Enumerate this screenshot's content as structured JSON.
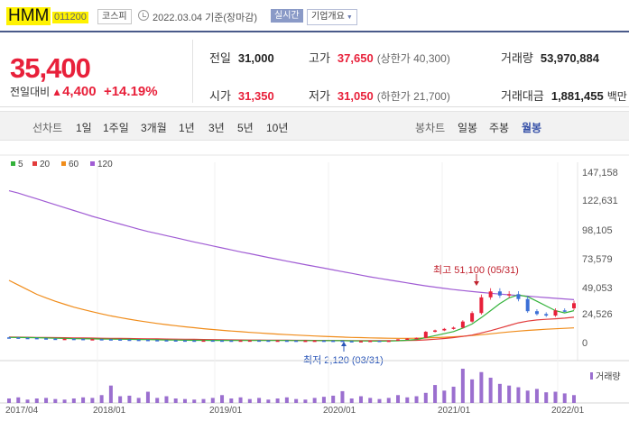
{
  "header": {
    "name": "HMM",
    "code": "011200",
    "market": "코스피",
    "date": "2022.03.04 기준(장마감)",
    "realtime": "실시간",
    "company_info": "기업개요"
  },
  "summary": {
    "price": "35,400",
    "change_label": "전일대비",
    "change_amount": "4,400",
    "change_pct": "+14.19%",
    "prev_close_label": "전일",
    "prev_close": "31,000",
    "open_label": "시가",
    "open": "31,350",
    "high_label": "고가",
    "high": "37,650",
    "upper_limit": "(상한가 40,300)",
    "low_label": "저가",
    "low": "31,050",
    "lower_limit": "(하한가 21,700)",
    "volume_label": "거래량",
    "volume": "53,970,884",
    "amount_label": "거래대금",
    "amount": "1,881,455",
    "amount_unit": "백만"
  },
  "tabs": {
    "line_label": "선차트",
    "line_items": [
      "1일",
      "1주일",
      "3개월",
      "1년",
      "3년",
      "5년",
      "10년"
    ],
    "candle_label": "봉차트",
    "candle_items": [
      "일봉",
      "주봉",
      "월봉"
    ],
    "selected": "월봉"
  },
  "colors": {
    "up": "#e8203a",
    "down": "#3b6fd6",
    "ma5": "#33b23a",
    "ma20": "#e23c3c",
    "ma60": "#f08c1a",
    "ma120": "#a05cd4",
    "volume": "#9b6fcf"
  },
  "chart_data": {
    "type": "candlestick",
    "title": "HMM 월봉",
    "legend": [
      "5",
      "20",
      "60",
      "120"
    ],
    "volume_label": "거래량",
    "y_ticks": [
      "147,158",
      "122,631",
      "98,105",
      "73,579",
      "49,053",
      "24,526",
      "0"
    ],
    "x_ticks": [
      "2017/04",
      "2018/01",
      "2019/01",
      "2020/01",
      "2021/01",
      "2022/01"
    ],
    "annotations": {
      "high": "최고 51,100 (05/31)",
      "low": "최저 2,120 (03/31)"
    },
    "close": [
      5900,
      5600,
      5500,
      5200,
      4900,
      4600,
      4800,
      4700,
      4200,
      4500,
      4400,
      4300,
      4100,
      4000,
      3900,
      3700,
      3600,
      3500,
      3400,
      3350,
      3300,
      3400,
      3350,
      3300,
      3250,
      3350,
      3400,
      3350,
      3300,
      3300,
      3250,
      3200,
      3200,
      3250,
      3200,
      3150,
      2800,
      2500,
      2800,
      3100,
      2900,
      3200,
      4300,
      5000,
      5600,
      10800,
      12000,
      13300,
      14400,
      19600,
      26900,
      40400,
      45500,
      42000,
      43150,
      38950,
      28500,
      26050,
      24750,
      29200,
      29150,
      35400
    ],
    "open": [
      6000,
      5900,
      5600,
      5500,
      5200,
      4900,
      4600,
      4800,
      4700,
      4200,
      4500,
      4400,
      4300,
      4100,
      4000,
      3900,
      3700,
      3600,
      3500,
      3400,
      3350,
      3300,
      3400,
      3350,
      3300,
      3250,
      3350,
      3400,
      3350,
      3300,
      3300,
      3250,
      3200,
      3200,
      3250,
      3200,
      3150,
      2800,
      2500,
      2800,
      3100,
      2900,
      3200,
      4300,
      5000,
      5600,
      10800,
      12000,
      13300,
      14400,
      19600,
      26900,
      40400,
      45500,
      42000,
      43150,
      38950,
      28500,
      26050,
      24750,
      29200,
      31000
    ],
    "ma5": [
      6000,
      5900,
      5800,
      5700,
      5500,
      5300,
      5100,
      4900,
      4800,
      4700,
      4600,
      4500,
      4400,
      4300,
      4200,
      4100,
      3950,
      3800,
      3700,
      3600,
      3500,
      3450,
      3400,
      3380,
      3360,
      3340,
      3330,
      3330,
      3340,
      3320,
      3300,
      3280,
      3250,
      3230,
      3210,
      3200,
      3150,
      3050,
      2950,
      2850,
      2800,
      2900,
      3100,
      3600,
      4200,
      5800,
      7500,
      9200,
      11000,
      14000,
      17500,
      23000,
      29000,
      35000,
      40000,
      42500,
      41000,
      37000,
      33000,
      29000,
      27000,
      29000
    ],
    "ma20": [
      6300,
      6200,
      6100,
      6000,
      5900,
      5800,
      5700,
      5600,
      5500,
      5400,
      5300,
      5200,
      5100,
      5000,
      4900,
      4800,
      4700,
      4600,
      4500,
      4400,
      4300,
      4200,
      4100,
      4000,
      3900,
      3800,
      3750,
      3700,
      3650,
      3600,
      3550,
      3500,
      3450,
      3400,
      3380,
      3360,
      3300,
      3250,
      3200,
      3180,
      3150,
      3150,
      3200,
      3300,
      3500,
      3900,
      4400,
      5000,
      5800,
      6800,
      8000,
      9800,
      11800,
      14000,
      16300,
      18500,
      20000,
      21000,
      21500,
      22000,
      22500,
      23300
    ],
    "ma60": [
      55000,
      51000,
      47000,
      43000,
      40000,
      37000,
      34500,
      32000,
      30000,
      28000,
      26200,
      24500,
      23000,
      21600,
      20300,
      19100,
      18000,
      17000,
      16000,
      15100,
      14300,
      13500,
      12800,
      12100,
      11500,
      10900,
      10300,
      9800,
      9300,
      8800,
      8400,
      8000,
      7600,
      7200,
      6900,
      6600,
      6300,
      6000,
      5800,
      5600,
      5400,
      5300,
      5200,
      5200,
      5300,
      5500,
      5800,
      6100,
      6500,
      7000,
      7600,
      8300,
      9100,
      9900,
      10700,
      11400,
      12000,
      12500,
      13000,
      13400,
      13800,
      14200
    ],
    "ma120": [
      132000,
      130000,
      127500,
      125000,
      122500,
      120000,
      117500,
      115000,
      112500,
      110000,
      107800,
      105600,
      103400,
      101200,
      99000,
      97000,
      95200,
      93400,
      91600,
      89800,
      88000,
      86300,
      84600,
      82900,
      81200,
      79500,
      77900,
      76300,
      74700,
      73100,
      71500,
      70000,
      68500,
      67000,
      65500,
      64000,
      62500,
      61000,
      59500,
      58000,
      56700,
      55400,
      54100,
      52800,
      51500,
      50300,
      49200,
      48100,
      47100,
      46200,
      45400,
      44600,
      43900,
      43200,
      42600,
      42000,
      41400,
      40800,
      40200,
      39600,
      39000,
      38400
    ],
    "volume": [
      8,
      10,
      6,
      8,
      9,
      7,
      6,
      8,
      10,
      9,
      14,
      31,
      12,
      13,
      9,
      20,
      9,
      12,
      8,
      7,
      6,
      7,
      9,
      14,
      8,
      10,
      7,
      9,
      6,
      8,
      10,
      7,
      6,
      9,
      11,
      13,
      21,
      8,
      12,
      9,
      7,
      9,
      14,
      10,
      12,
      18,
      32,
      22,
      29,
      61,
      42,
      55,
      45,
      34,
      31,
      28,
      22,
      25,
      19,
      20,
      17,
      14
    ]
  }
}
